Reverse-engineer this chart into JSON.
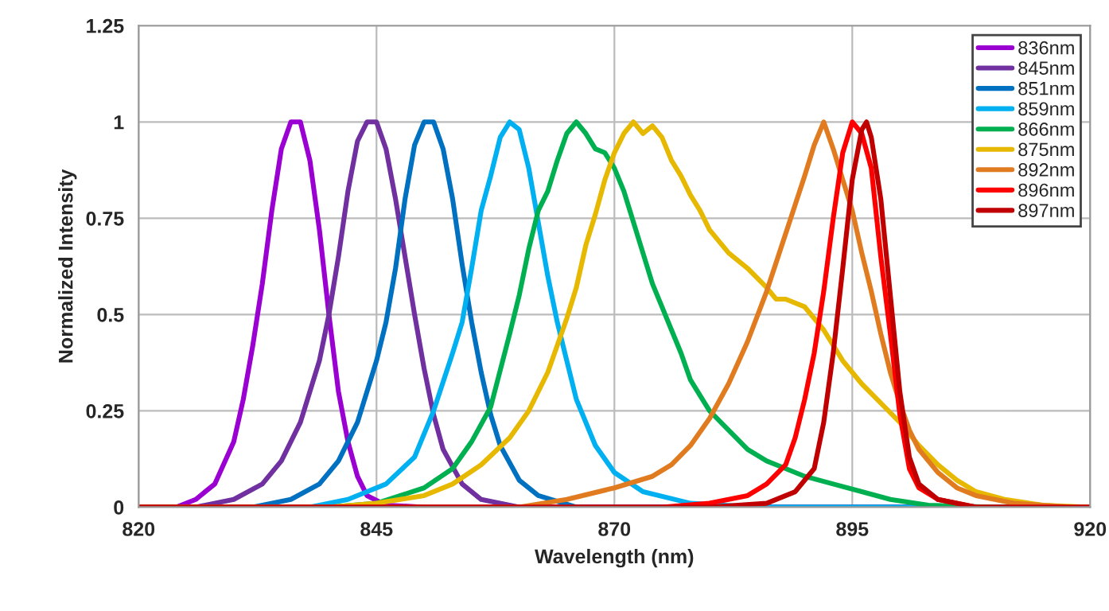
{
  "chart_data": {
    "type": "line",
    "xlabel": "Wavelength (nm)",
    "ylabel": "Normalized Intensity",
    "xlim": [
      820,
      920
    ],
    "xticks": [
      820,
      845,
      870,
      895,
      920
    ],
    "ylim": [
      0,
      1.25
    ],
    "yticks": [
      0,
      0.25,
      0.5,
      0.75,
      1,
      1.25
    ],
    "grid": true,
    "legend": "top right",
    "marker": "none",
    "line_style": "solid",
    "series": [
      {
        "name": "836nm",
        "color": "#9b00d3",
        "x": [
          820,
          824,
          826,
          828,
          830,
          831,
          832,
          833,
          834,
          835,
          836,
          837,
          838,
          839,
          840,
          841,
          842,
          843,
          844,
          846,
          850,
          920
        ],
        "values": [
          0,
          0,
          0.02,
          0.06,
          0.17,
          0.28,
          0.42,
          0.58,
          0.77,
          0.93,
          1.0,
          1.0,
          0.9,
          0.72,
          0.5,
          0.3,
          0.17,
          0.08,
          0.03,
          0.005,
          0,
          0
        ]
      },
      {
        "name": "845nm",
        "color": "#7030a0",
        "x": [
          820,
          826,
          830,
          833,
          835,
          837,
          839,
          840,
          841,
          842,
          843,
          844,
          845,
          846,
          847,
          848,
          849,
          850,
          851,
          852,
          854,
          856,
          860,
          920
        ],
        "values": [
          0,
          0,
          0.02,
          0.06,
          0.12,
          0.22,
          0.38,
          0.5,
          0.65,
          0.82,
          0.95,
          1.0,
          1.0,
          0.93,
          0.8,
          0.65,
          0.5,
          0.36,
          0.24,
          0.15,
          0.06,
          0.02,
          0,
          0
        ]
      },
      {
        "name": "851nm",
        "color": "#0070c0",
        "x": [
          820,
          832,
          836,
          839,
          841,
          843,
          845,
          846,
          847,
          848,
          849,
          850,
          851,
          852,
          853,
          854,
          855,
          856,
          857,
          858,
          860,
          862,
          866,
          920
        ],
        "values": [
          0,
          0,
          0.02,
          0.06,
          0.12,
          0.22,
          0.38,
          0.48,
          0.62,
          0.8,
          0.94,
          1.0,
          1.0,
          0.93,
          0.8,
          0.63,
          0.48,
          0.35,
          0.24,
          0.16,
          0.07,
          0.03,
          0,
          0
        ]
      },
      {
        "name": "859nm",
        "color": "#00b0f0",
        "x": [
          820,
          838,
          842,
          846,
          849,
          851,
          853,
          854,
          855,
          856,
          857,
          858,
          859,
          860,
          861,
          862,
          863,
          864,
          865,
          866,
          868,
          870,
          873,
          878,
          885,
          920
        ],
        "values": [
          0,
          0,
          0.02,
          0.06,
          0.13,
          0.25,
          0.4,
          0.48,
          0.62,
          0.77,
          0.86,
          0.96,
          1.0,
          0.98,
          0.88,
          0.74,
          0.6,
          0.48,
          0.38,
          0.28,
          0.16,
          0.09,
          0.04,
          0.01,
          0,
          0
        ]
      },
      {
        "name": "866nm",
        "color": "#00b050",
        "x": [
          820,
          840,
          845,
          850,
          853,
          855,
          857,
          859,
          860,
          861,
          862,
          863,
          864,
          865,
          866,
          867,
          868,
          869,
          870,
          871,
          872,
          873,
          874,
          875,
          876,
          877,
          878,
          880,
          882,
          884,
          886,
          888,
          890,
          893,
          896,
          899,
          903,
          910,
          920
        ],
        "values": [
          0,
          0,
          0.01,
          0.05,
          0.1,
          0.17,
          0.26,
          0.45,
          0.55,
          0.67,
          0.77,
          0.82,
          0.9,
          0.97,
          1.0,
          0.97,
          0.93,
          0.92,
          0.88,
          0.82,
          0.74,
          0.66,
          0.58,
          0.52,
          0.46,
          0.4,
          0.33,
          0.25,
          0.2,
          0.15,
          0.12,
          0.1,
          0.08,
          0.06,
          0.04,
          0.02,
          0.005,
          0,
          0
        ]
      },
      {
        "name": "875nm",
        "color": "#e6b800",
        "x": [
          820,
          840,
          845,
          850,
          853,
          856,
          859,
          861,
          863,
          865,
          866,
          867,
          868,
          869,
          870,
          871,
          872,
          873,
          874,
          875,
          876,
          877,
          878,
          879,
          880,
          882,
          884,
          886,
          887,
          888,
          890,
          892,
          894,
          896,
          898,
          900,
          902,
          904,
          906,
          908,
          911,
          915,
          920
        ],
        "values": [
          0,
          0,
          0.01,
          0.03,
          0.06,
          0.11,
          0.18,
          0.25,
          0.35,
          0.49,
          0.57,
          0.68,
          0.76,
          0.85,
          0.92,
          0.97,
          1.0,
          0.97,
          0.99,
          0.96,
          0.9,
          0.86,
          0.81,
          0.77,
          0.72,
          0.66,
          0.62,
          0.57,
          0.54,
          0.54,
          0.52,
          0.46,
          0.38,
          0.32,
          0.27,
          0.22,
          0.16,
          0.11,
          0.07,
          0.04,
          0.02,
          0.005,
          0
        ]
      },
      {
        "name": "892nm",
        "color": "#e07b20",
        "x": [
          820,
          860,
          865,
          870,
          874,
          876,
          878,
          880,
          882,
          884,
          886,
          888,
          890,
          891,
          892,
          893,
          894,
          895,
          896,
          897,
          898,
          899,
          900,
          901,
          902,
          904,
          906,
          908,
          912,
          918,
          920
        ],
        "values": [
          0,
          0,
          0.02,
          0.05,
          0.08,
          0.11,
          0.16,
          0.23,
          0.32,
          0.43,
          0.56,
          0.71,
          0.86,
          0.94,
          1.0,
          0.93,
          0.85,
          0.77,
          0.66,
          0.56,
          0.45,
          0.35,
          0.27,
          0.2,
          0.15,
          0.09,
          0.05,
          0.03,
          0.01,
          0,
          0
        ]
      },
      {
        "name": "896nm",
        "color": "#ff0000",
        "x": [
          820,
          875,
          880,
          884,
          886,
          888,
          889,
          890,
          891,
          892,
          893,
          894,
          895,
          896,
          897,
          898,
          899,
          900,
          901,
          902,
          904,
          908,
          920
        ],
        "values": [
          0,
          0,
          0.01,
          0.03,
          0.06,
          0.11,
          0.18,
          0.28,
          0.4,
          0.56,
          0.75,
          0.92,
          1.0,
          0.97,
          0.88,
          0.65,
          0.45,
          0.24,
          0.1,
          0.05,
          0.02,
          0,
          0
        ]
      },
      {
        "name": "897nm",
        "color": "#c00000",
        "x": [
          820,
          880,
          886,
          889,
          891,
          892,
          893,
          894,
          895,
          896,
          896.5,
          897,
          898,
          899,
          900,
          901,
          902,
          904,
          908,
          920
        ],
        "values": [
          0,
          0,
          0.01,
          0.04,
          0.1,
          0.22,
          0.4,
          0.62,
          0.85,
          0.98,
          1.0,
          0.96,
          0.8,
          0.55,
          0.3,
          0.13,
          0.06,
          0.02,
          0,
          0
        ]
      }
    ]
  }
}
